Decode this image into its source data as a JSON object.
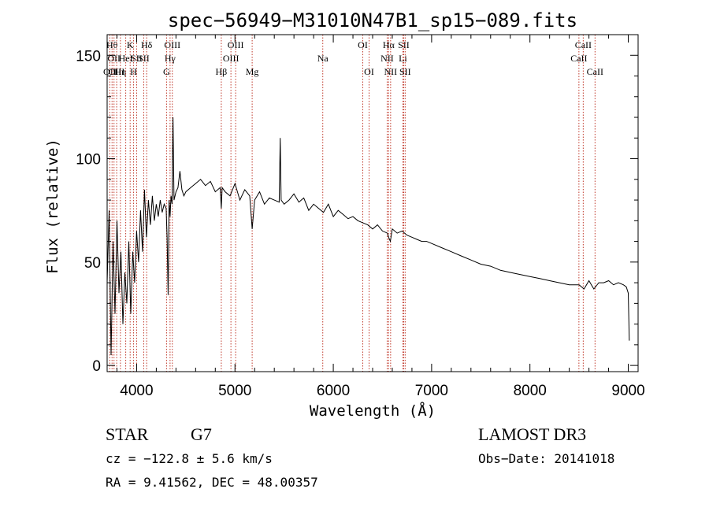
{
  "chart_data": {
    "type": "line",
    "title": "spec−56949−M31010N47B1_sp15−089.fits",
    "xlabel": "Wavelength (Å)",
    "ylabel": "Flux (relative)",
    "xlim": [
      3700,
      9100
    ],
    "ylim": [
      -3,
      160
    ],
    "xticks": [
      {
        "value": 4000,
        "label": "4000"
      },
      {
        "value": 5000,
        "label": "5000"
      },
      {
        "value": 6000,
        "label": "6000"
      },
      {
        "value": 7000,
        "label": "7000"
      },
      {
        "value": 8000,
        "label": "8000"
      },
      {
        "value": 9000,
        "label": "9000"
      }
    ],
    "yticks": [
      {
        "value": 0,
        "label": "0"
      },
      {
        "value": 50,
        "label": "50"
      },
      {
        "value": 100,
        "label": "100"
      },
      {
        "value": 150,
        "label": "150"
      }
    ],
    "spectrum": {
      "name": "flux",
      "x": [
        3700,
        3720,
        3740,
        3760,
        3780,
        3800,
        3820,
        3840,
        3860,
        3880,
        3900,
        3920,
        3940,
        3960,
        3980,
        4000,
        4020,
        4040,
        4060,
        4080,
        4100,
        4120,
        4140,
        4160,
        4180,
        4200,
        4220,
        4240,
        4260,
        4280,
        4300,
        4310,
        4320,
        4330,
        4340,
        4350,
        4360,
        4370,
        4380,
        4400,
        4420,
        4440,
        4460,
        4480,
        4500,
        4550,
        4600,
        4650,
        4700,
        4750,
        4800,
        4850,
        4861,
        4870,
        4900,
        4950,
        5000,
        5050,
        5100,
        5150,
        5175,
        5200,
        5250,
        5300,
        5350,
        5400,
        5450,
        5460,
        5470,
        5500,
        5550,
        5600,
        5650,
        5700,
        5750,
        5800,
        5850,
        5900,
        5950,
        6000,
        6050,
        6100,
        6150,
        6200,
        6250,
        6300,
        6350,
        6400,
        6450,
        6500,
        6550,
        6563,
        6580,
        6600,
        6650,
        6700,
        6750,
        6800,
        6850,
        6900,
        6950,
        7000,
        7100,
        7200,
        7300,
        7400,
        7500,
        7600,
        7700,
        7800,
        7900,
        8000,
        8100,
        8200,
        8300,
        8400,
        8500,
        8550,
        8600,
        8650,
        8700,
        8750,
        8800,
        8850,
        8900,
        8950,
        8980,
        9000,
        9010
      ],
      "y": [
        40,
        75,
        5,
        60,
        25,
        70,
        35,
        55,
        20,
        45,
        30,
        60,
        25,
        55,
        40,
        65,
        50,
        75,
        55,
        85,
        62,
        80,
        68,
        82,
        70,
        78,
        72,
        80,
        74,
        78,
        76,
        62,
        34,
        80,
        72,
        82,
        78,
        120,
        80,
        84,
        86,
        94,
        85,
        82,
        84,
        86,
        88,
        90,
        87,
        89,
        84,
        86,
        76,
        86,
        84,
        82,
        88,
        80,
        85,
        82,
        66,
        80,
        84,
        78,
        81,
        80,
        79,
        110,
        80,
        78,
        80,
        83,
        79,
        81,
        75,
        78,
        76,
        74,
        78,
        72,
        75,
        73,
        71,
        72,
        70,
        69,
        68,
        66,
        68,
        65,
        64,
        62,
        60,
        66,
        64,
        65,
        63,
        62,
        61,
        60,
        60,
        59,
        57,
        55,
        53,
        51,
        49,
        48,
        46,
        45,
        44,
        43,
        42,
        41,
        40,
        39,
        39,
        37,
        41,
        37,
        40,
        40,
        41,
        39,
        40,
        39,
        38,
        35,
        12
      ]
    },
    "lines": [
      {
        "name": "OII",
        "wavelength": 3727,
        "row": 2
      },
      {
        "name": "Hθ",
        "wavelength": 3750,
        "row": 0
      },
      {
        "name": "OII",
        "wavelength": 3770,
        "row": 1
      },
      {
        "name": "OIII",
        "wavelength": 3797,
        "row": 2
      },
      {
        "name": "Hη",
        "wavelength": 3835,
        "row": 2
      },
      {
        "name": "HeI",
        "wavelength": 3889,
        "row": 1
      },
      {
        "name": "K",
        "wavelength": 3934,
        "row": 0
      },
      {
        "name": "SII",
        "wavelength": 4000,
        "row": 1
      },
      {
        "name": "H",
        "wavelength": 3969,
        "row": 2
      },
      {
        "name": "Hδ",
        "wavelength": 4102,
        "row": 0
      },
      {
        "name": "SII",
        "wavelength": 4072,
        "row": 1
      },
      {
        "name": "OIII",
        "wavelength": 4363,
        "row": 0
      },
      {
        "name": "Hγ",
        "wavelength": 4340,
        "row": 1
      },
      {
        "name": "G",
        "wavelength": 4304,
        "row": 2
      },
      {
        "name": "OIII",
        "wavelength": 5007,
        "row": 0
      },
      {
        "name": "OIII",
        "wavelength": 4959,
        "row": 1
      },
      {
        "name": "Hβ",
        "wavelength": 4861,
        "row": 2
      },
      {
        "name": "Mg",
        "wavelength": 5175,
        "row": 2
      },
      {
        "name": "Na",
        "wavelength": 5893,
        "row": 1
      },
      {
        "name": "OI",
        "wavelength": 6300,
        "row": 0
      },
      {
        "name": "OI",
        "wavelength": 6364,
        "row": 2
      },
      {
        "name": "Hα",
        "wavelength": 6563,
        "row": 0
      },
      {
        "name": "SII",
        "wavelength": 6716,
        "row": 0
      },
      {
        "name": "NII",
        "wavelength": 6548,
        "row": 1
      },
      {
        "name": "Li",
        "wavelength": 6708,
        "row": 1
      },
      {
        "name": "NII",
        "wavelength": 6583,
        "row": 2
      },
      {
        "name": "SII",
        "wavelength": 6731,
        "row": 2
      },
      {
        "name": "CaII",
        "wavelength": 8542,
        "row": 0
      },
      {
        "name": "CaII",
        "wavelength": 8498,
        "row": 1
      },
      {
        "name": "CaII",
        "wavelength": 8662,
        "row": 2
      }
    ],
    "line_color": "#c0392b",
    "grid": false
  },
  "info": {
    "object_type": "STAR",
    "subclass": "G7",
    "survey": "LAMOST DR3",
    "cz": "cz = −122.8 ± 5.6 km/s",
    "obs_date": "Obs−Date: 20141018",
    "coords": "RA =   9.41562, DEC =  48.00357"
  }
}
